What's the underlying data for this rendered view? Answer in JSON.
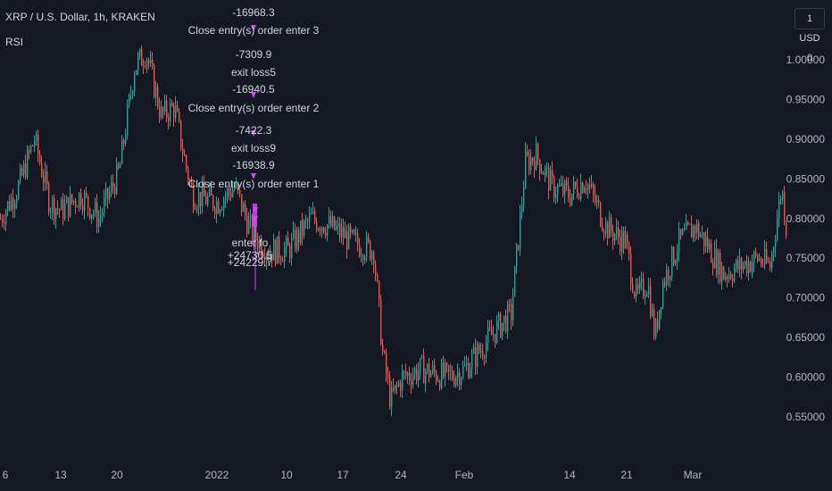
{
  "header": {
    "symbol_line": "XRP / U.S. Dollar, 1h, KRAKEN",
    "indicator": "RSI",
    "currency_button": "1 USD 0"
  },
  "colors": {
    "background": "#141823",
    "up": "#26a69a",
    "down": "#ef5350",
    "annotation": "#e040fb",
    "text": "#d1d4dc",
    "axis_text": "#b2b5be"
  },
  "chart_data": {
    "type": "candlestick",
    "title": "XRP / U.S. Dollar, 1h, KRAKEN",
    "y_axis_ticks": [
      "1.00000",
      "0.95000",
      "0.90000",
      "0.85000",
      "0.80000",
      "0.75000",
      "0.70000",
      "0.65000",
      "0.60000",
      "0.55000"
    ],
    "ylim": [
      0.53,
      1.06
    ],
    "x_axis_ticks": [
      "6",
      "13",
      "20",
      "2022",
      "10",
      "17",
      "24",
      "Feb",
      "14",
      "21",
      "Mar"
    ],
    "grid": false,
    "price_path": [
      {
        "x": "6",
        "close": 0.8
      },
      {
        "x": "8",
        "close": 0.84
      },
      {
        "x": "10",
        "close": 0.9
      },
      {
        "x": "12",
        "close": 0.82
      },
      {
        "x": "13",
        "close": 0.81
      },
      {
        "x": "15",
        "close": 0.83
      },
      {
        "x": "17",
        "close": 0.8
      },
      {
        "x": "19",
        "close": 0.86
      },
      {
        "x": "21",
        "close": 0.99
      },
      {
        "x": "22",
        "close": 1.01
      },
      {
        "x": "24",
        "close": 0.93
      },
      {
        "x": "26",
        "close": 0.94
      },
      {
        "x": "28",
        "close": 0.88
      },
      {
        "x": "30",
        "close": 0.83
      },
      {
        "x": "2022",
        "close": 0.82
      },
      {
        "x": "4",
        "close": 0.84
      },
      {
        "x": "6",
        "close": 0.78
      },
      {
        "x": "8",
        "close": 0.76
      },
      {
        "x": "10",
        "close": 0.76
      },
      {
        "x": "11",
        "close": 0.8
      },
      {
        "x": "14",
        "close": 0.79
      },
      {
        "x": "17",
        "close": 0.77
      },
      {
        "x": "19",
        "close": 0.76
      },
      {
        "x": "21",
        "close": 0.63
      },
      {
        "x": "22",
        "close": 0.57
      },
      {
        "x": "24",
        "close": 0.6
      },
      {
        "x": "27",
        "close": 0.61
      },
      {
        "x": "31",
        "close": 0.6
      },
      {
        "x": "Feb",
        "close": 0.61
      },
      {
        "x": "4",
        "close": 0.66
      },
      {
        "x": "6",
        "close": 0.68
      },
      {
        "x": "8",
        "close": 0.87
      },
      {
        "x": "10",
        "close": 0.88
      },
      {
        "x": "12",
        "close": 0.84
      },
      {
        "x": "14",
        "close": 0.83
      },
      {
        "x": "16",
        "close": 0.85
      },
      {
        "x": "18",
        "close": 0.79
      },
      {
        "x": "20",
        "close": 0.77
      },
      {
        "x": "21",
        "close": 0.7
      },
      {
        "x": "23",
        "close": 0.72
      },
      {
        "x": "24",
        "close": 0.65
      },
      {
        "x": "25",
        "close": 0.72
      },
      {
        "x": "26",
        "close": 0.77
      },
      {
        "x": "28",
        "close": 0.79
      },
      {
        "x": "Mar",
        "close": 0.77
      },
      {
        "x": "3",
        "close": 0.73
      },
      {
        "x": "5",
        "close": 0.74
      },
      {
        "x": "7",
        "close": 0.75
      },
      {
        "x": "9",
        "close": 0.74
      },
      {
        "x": "10",
        "close": 0.84
      },
      {
        "x": "11",
        "close": 0.79
      }
    ],
    "annotations": [
      "-16968.3",
      "Close entry(s) order enter 3",
      "-7309.9",
      "exit loss5",
      "-16940.5",
      "Close entry(s) order enter 2",
      "-7422.3",
      "exit loss9",
      "-16938.9",
      "Close entry(s) order enter 1",
      "enter fo",
      "+24730.5",
      "+24229.7"
    ]
  }
}
